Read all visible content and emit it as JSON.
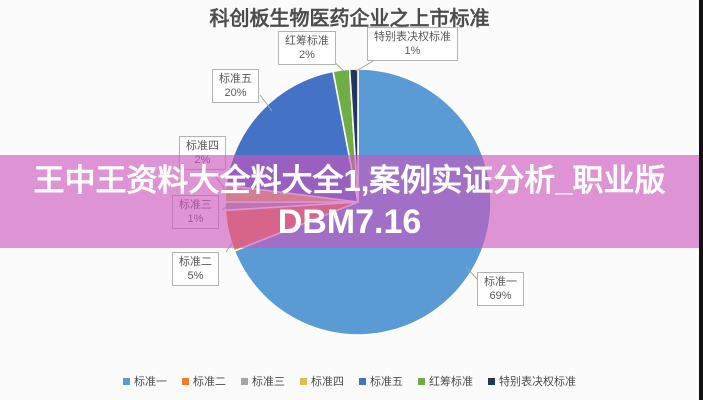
{
  "banner": {
    "line1": "王中王资料大全料大全1,案例实证分析_职业版",
    "line2": "DBM7.16",
    "background": "rgba(203,86,189,0.63)",
    "text_color": "#ffffff"
  },
  "chart_data": {
    "type": "pie",
    "title": "科创板生物医药企业之上市标准",
    "start_angle_deg": 0,
    "direction": "clockwise",
    "legend_position": "bottom",
    "slices": [
      {
        "label": "标准一",
        "value": 69,
        "pct_label": "69%",
        "color": "#5B9BD5"
      },
      {
        "label": "标准二",
        "value": 5,
        "pct_label": "5%",
        "color": "#ED7D31"
      },
      {
        "label": "标准三",
        "value": 1,
        "pct_label": "1%",
        "color": "#A5A5A5"
      },
      {
        "label": "标准四",
        "value": 2,
        "pct_label": "2%",
        "color": "#DDC050"
      },
      {
        "label": "标准五",
        "value": 20,
        "pct_label": "20%",
        "color": "#4472C4"
      },
      {
        "label": "红筹标准",
        "value": 2,
        "pct_label": "2%",
        "color": "#70AD47"
      },
      {
        "label": "特别表决权标准",
        "value": 1,
        "pct_label": "1%",
        "color": "#24365A"
      }
    ]
  }
}
